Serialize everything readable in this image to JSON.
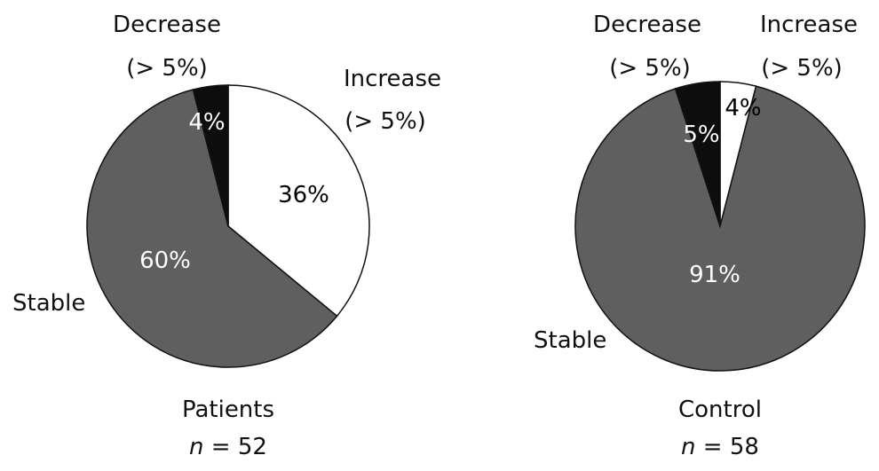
{
  "chart_data": [
    {
      "type": "pie",
      "title": "Patients",
      "n_label": "n",
      "n_value": "= 52",
      "slices": [
        {
          "label": "Increase",
          "sublabel": "(> 5%)",
          "value": 36,
          "pct_label": "36%",
          "color": "#ffffff",
          "pct_color": "#111111"
        },
        {
          "label": "Stable",
          "sublabel": "",
          "value": 60,
          "pct_label": "60%",
          "color": "#5f5f5f",
          "pct_color": "#ffffff"
        },
        {
          "label": "Decrease",
          "sublabel": "(> 5%)",
          "value": 4,
          "pct_label": "4%",
          "color": "#0d0d0d",
          "pct_color": "#ffffff"
        }
      ]
    },
    {
      "type": "pie",
      "title": "Control",
      "n_label": "n",
      "n_value": "= 58",
      "slices": [
        {
          "label": "Increase",
          "sublabel": "(> 5%)",
          "value": 4,
          "pct_label": "4%",
          "color": "#ffffff",
          "pct_color": "#111111"
        },
        {
          "label": "Stable",
          "sublabel": "",
          "value": 91,
          "pct_label": "91%",
          "color": "#5f5f5f",
          "pct_color": "#ffffff"
        },
        {
          "label": "Decrease",
          "sublabel": "(> 5%)",
          "value": 5,
          "pct_label": "5%",
          "color": "#0d0d0d",
          "pct_color": "#ffffff"
        }
      ]
    }
  ]
}
